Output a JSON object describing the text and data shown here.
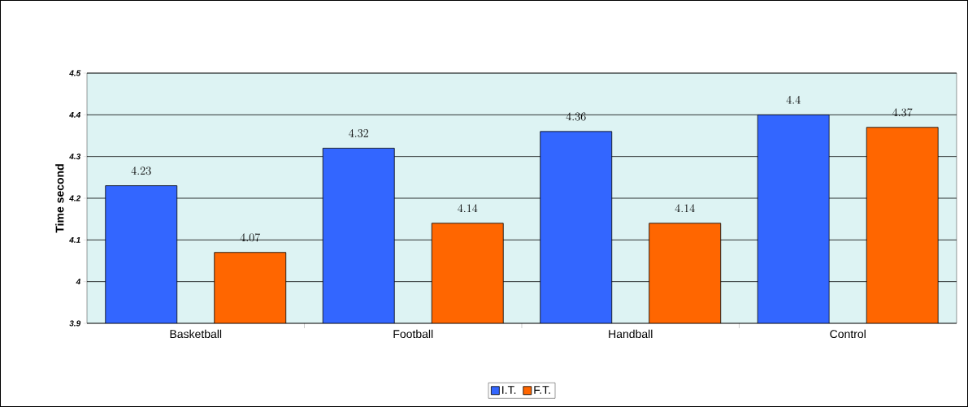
{
  "chart_data": {
    "type": "bar",
    "ylabel": "Time second",
    "categories": [
      "Basketball",
      "Football",
      "Handball",
      "Control"
    ],
    "series": [
      {
        "name": "I.T.",
        "color": "#3366ff",
        "values": [
          4.23,
          4.32,
          4.36,
          4.4
        ]
      },
      {
        "name": "F.T.",
        "color": "#ff6600",
        "values": [
          4.07,
          4.14,
          4.14,
          4.37
        ]
      }
    ],
    "ylim": [
      3.9,
      4.5
    ],
    "yticks": [
      3.9,
      4,
      4.1,
      4.2,
      4.3,
      4.4,
      4.5
    ],
    "grid": "y",
    "legend": "bottom",
    "data_labels": true
  }
}
